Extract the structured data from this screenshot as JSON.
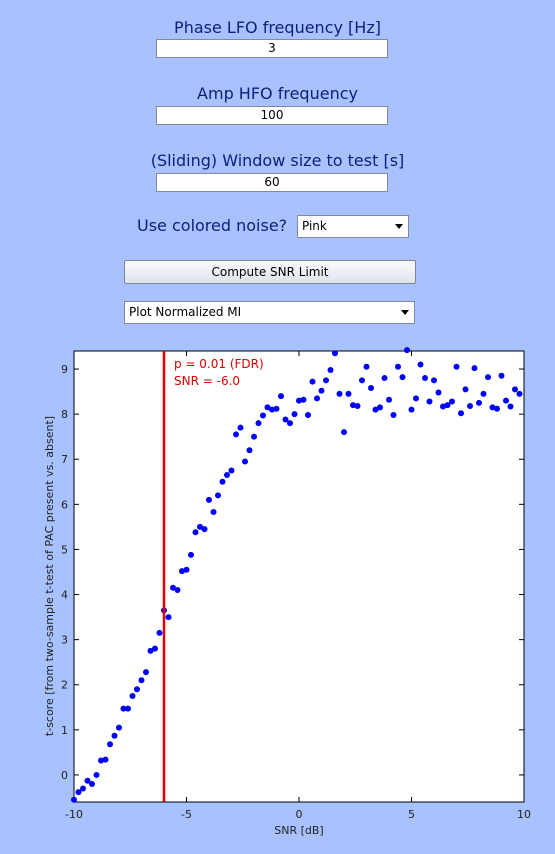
{
  "form": {
    "phase_label": "Phase LFO frequency [Hz]",
    "phase_value": "3",
    "amp_label": "Amp HFO frequency",
    "amp_value": "100",
    "window_label": "(Sliding) Window size to test [s]",
    "window_value": "60",
    "noise_label": "Use colored noise?",
    "noise_selected": "Pink",
    "compute_button": "Compute SNR Limit",
    "plot_selected": "Plot Normalized MI"
  },
  "colors": {
    "background": "#a7c2ff",
    "points": "#0000ff",
    "threshold_line": "#e00000"
  },
  "chart_data": {
    "type": "scatter",
    "xlabel": "SNR [dB]",
    "ylabel": "t-score [from two-sample t-test of PAC present vs. absent]",
    "xlim": [
      -10,
      10
    ],
    "ylim": [
      -0.6,
      9.4
    ],
    "x_ticks": [
      -10,
      -5,
      0,
      5,
      10
    ],
    "y_ticks": [
      0,
      1,
      2,
      3,
      4,
      5,
      6,
      7,
      8,
      9
    ],
    "annotation": [
      "p = 0.01 (FDR)",
      "SNR = -6.0"
    ],
    "threshold_x": -6.0,
    "points": [
      [
        -10.0,
        -0.55
      ],
      [
        -9.8,
        -0.38
      ],
      [
        -9.6,
        -0.3
      ],
      [
        -9.4,
        -0.13
      ],
      [
        -9.2,
        -0.2
      ],
      [
        -9.0,
        0.0
      ],
      [
        -8.8,
        0.32
      ],
      [
        -8.6,
        0.34
      ],
      [
        -8.4,
        0.68
      ],
      [
        -8.2,
        0.87
      ],
      [
        -8.0,
        1.05
      ],
      [
        -7.8,
        1.47
      ],
      [
        -7.6,
        1.47
      ],
      [
        -7.4,
        1.75
      ],
      [
        -7.2,
        1.9
      ],
      [
        -7.0,
        2.1
      ],
      [
        -6.8,
        2.28
      ],
      [
        -6.6,
        2.75
      ],
      [
        -6.4,
        2.8
      ],
      [
        -6.2,
        3.15
      ],
      [
        -6.0,
        3.65
      ],
      [
        -5.8,
        3.5
      ],
      [
        -5.6,
        4.15
      ],
      [
        -5.4,
        4.1
      ],
      [
        -5.2,
        4.52
      ],
      [
        -5.0,
        4.55
      ],
      [
        -4.8,
        4.88
      ],
      [
        -4.6,
        5.38
      ],
      [
        -4.4,
        5.5
      ],
      [
        -4.2,
        5.45
      ],
      [
        -4.0,
        6.1
      ],
      [
        -3.8,
        5.83
      ],
      [
        -3.6,
        6.2
      ],
      [
        -3.4,
        6.5
      ],
      [
        -3.2,
        6.65
      ],
      [
        -3.0,
        6.75
      ],
      [
        -2.8,
        7.55
      ],
      [
        -2.6,
        7.7
      ],
      [
        -2.4,
        6.95
      ],
      [
        -2.2,
        7.2
      ],
      [
        -2.0,
        7.5
      ],
      [
        -1.8,
        7.8
      ],
      [
        -1.6,
        7.97
      ],
      [
        -1.4,
        8.15
      ],
      [
        -1.2,
        8.1
      ],
      [
        -1.0,
        8.12
      ],
      [
        -0.8,
        8.4
      ],
      [
        -0.6,
        7.88
      ],
      [
        -0.4,
        7.8
      ],
      [
        -0.2,
        8.0
      ],
      [
        0.0,
        8.3
      ],
      [
        0.2,
        8.32
      ],
      [
        0.4,
        7.98
      ],
      [
        0.6,
        8.72
      ],
      [
        0.8,
        8.35
      ],
      [
        1.0,
        8.52
      ],
      [
        1.2,
        8.75
      ],
      [
        1.4,
        8.98
      ],
      [
        1.6,
        9.35
      ],
      [
        1.8,
        8.45
      ],
      [
        2.0,
        7.6
      ],
      [
        2.2,
        8.45
      ],
      [
        2.4,
        8.2
      ],
      [
        2.6,
        8.18
      ],
      [
        2.8,
        8.75
      ],
      [
        3.0,
        9.05
      ],
      [
        3.2,
        8.58
      ],
      [
        3.4,
        8.1
      ],
      [
        3.6,
        8.15
      ],
      [
        3.8,
        8.8
      ],
      [
        4.0,
        8.32
      ],
      [
        4.2,
        7.98
      ],
      [
        4.4,
        9.05
      ],
      [
        4.6,
        8.82
      ],
      [
        4.8,
        9.42
      ],
      [
        5.0,
        8.1
      ],
      [
        5.2,
        8.35
      ],
      [
        5.4,
        9.1
      ],
      [
        5.6,
        8.8
      ],
      [
        5.8,
        8.28
      ],
      [
        6.0,
        8.75
      ],
      [
        6.2,
        8.48
      ],
      [
        6.4,
        8.17
      ],
      [
        6.6,
        8.2
      ],
      [
        6.8,
        8.28
      ],
      [
        7.0,
        9.05
      ],
      [
        7.2,
        8.02
      ],
      [
        7.4,
        8.55
      ],
      [
        7.6,
        8.18
      ],
      [
        7.8,
        9.02
      ],
      [
        8.0,
        8.25
      ],
      [
        8.2,
        8.45
      ],
      [
        8.4,
        8.82
      ],
      [
        8.6,
        8.15
      ],
      [
        8.8,
        8.12
      ],
      [
        9.0,
        8.85
      ],
      [
        9.2,
        8.3
      ],
      [
        9.4,
        8.17
      ],
      [
        9.6,
        8.55
      ],
      [
        9.8,
        8.45
      ]
    ]
  }
}
